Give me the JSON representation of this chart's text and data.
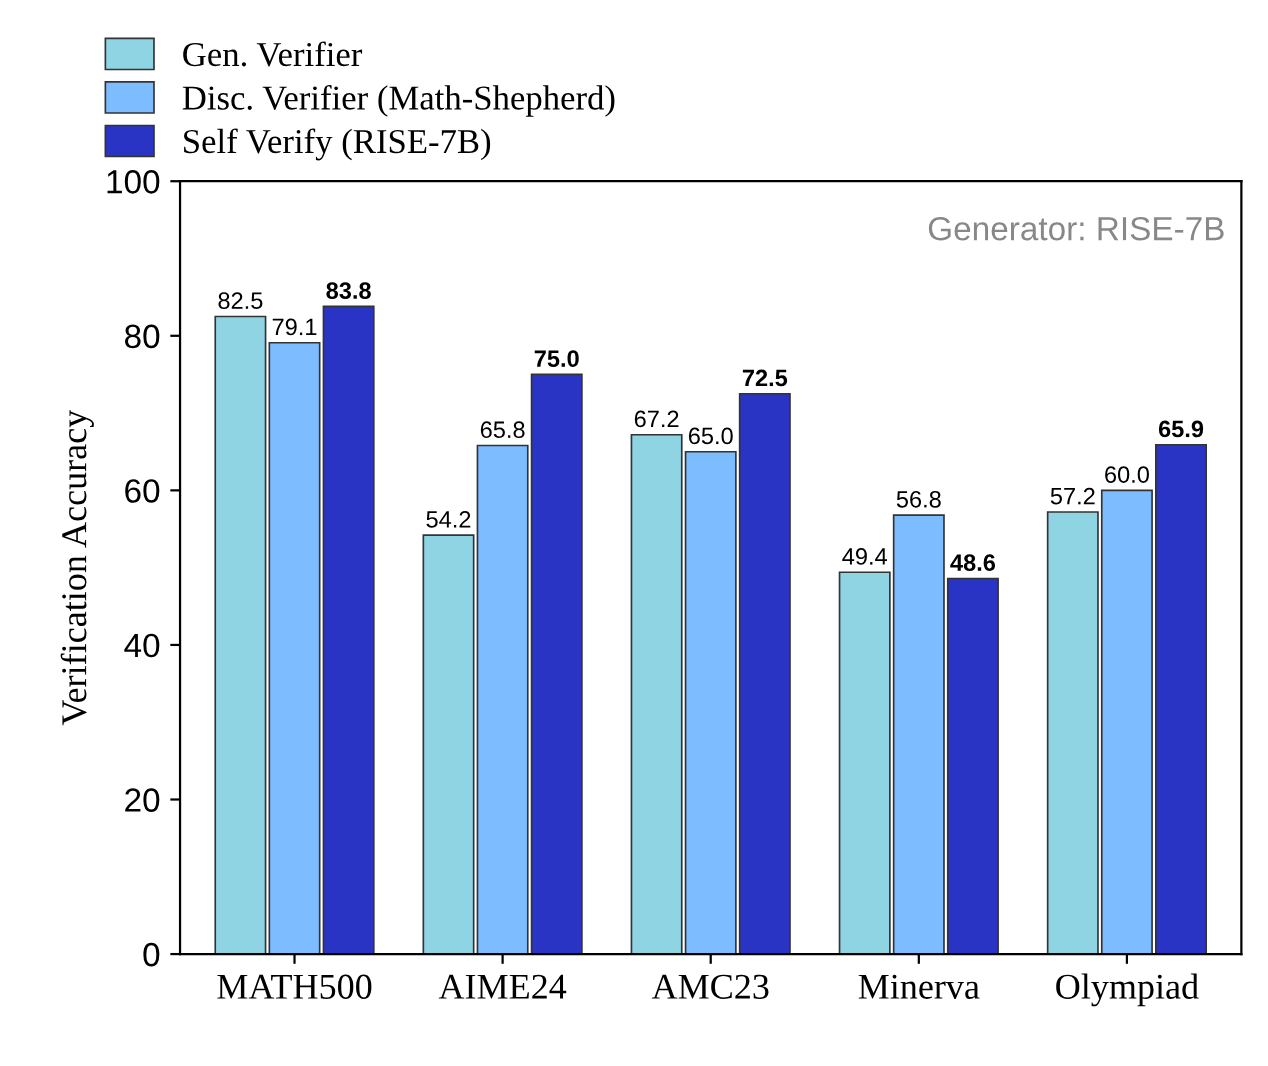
{
  "chart_data": {
    "type": "bar",
    "ylabel": "Verification Accuracy",
    "categories": [
      "MATH500",
      "AIME24",
      "AMC23",
      "Minerva",
      "Olympiad"
    ],
    "series": [
      {
        "name": "Gen. Verifier",
        "color": "#8fd4e3",
        "values": [
          82.5,
          54.2,
          67.2,
          49.4,
          57.2
        ],
        "value_labels": [
          "82.5",
          "54.2",
          "67.2",
          "49.4",
          "57.2"
        ]
      },
      {
        "name": "Disc. Verifier (Math-Shepherd)",
        "color": "#7dbcff",
        "values": [
          79.1,
          65.8,
          65.0,
          56.8,
          60.0
        ],
        "value_labels": [
          "79.1",
          "65.8",
          "65.0",
          "56.8",
          "60.0"
        ]
      },
      {
        "name": "Self Verify (RISE-7B)",
        "color": "#2a34c4",
        "values": [
          83.8,
          75.0,
          72.5,
          48.6,
          65.9
        ],
        "value_labels": [
          "83.8",
          "75.0",
          "72.5",
          "48.6",
          "65.9"
        ]
      }
    ],
    "ylim": [
      0,
      100
    ],
    "yticks": [
      0,
      20,
      40,
      60,
      80,
      100
    ],
    "annotations": [
      "Generator: RISE-7B"
    ],
    "grid": false,
    "legend": "top left"
  }
}
